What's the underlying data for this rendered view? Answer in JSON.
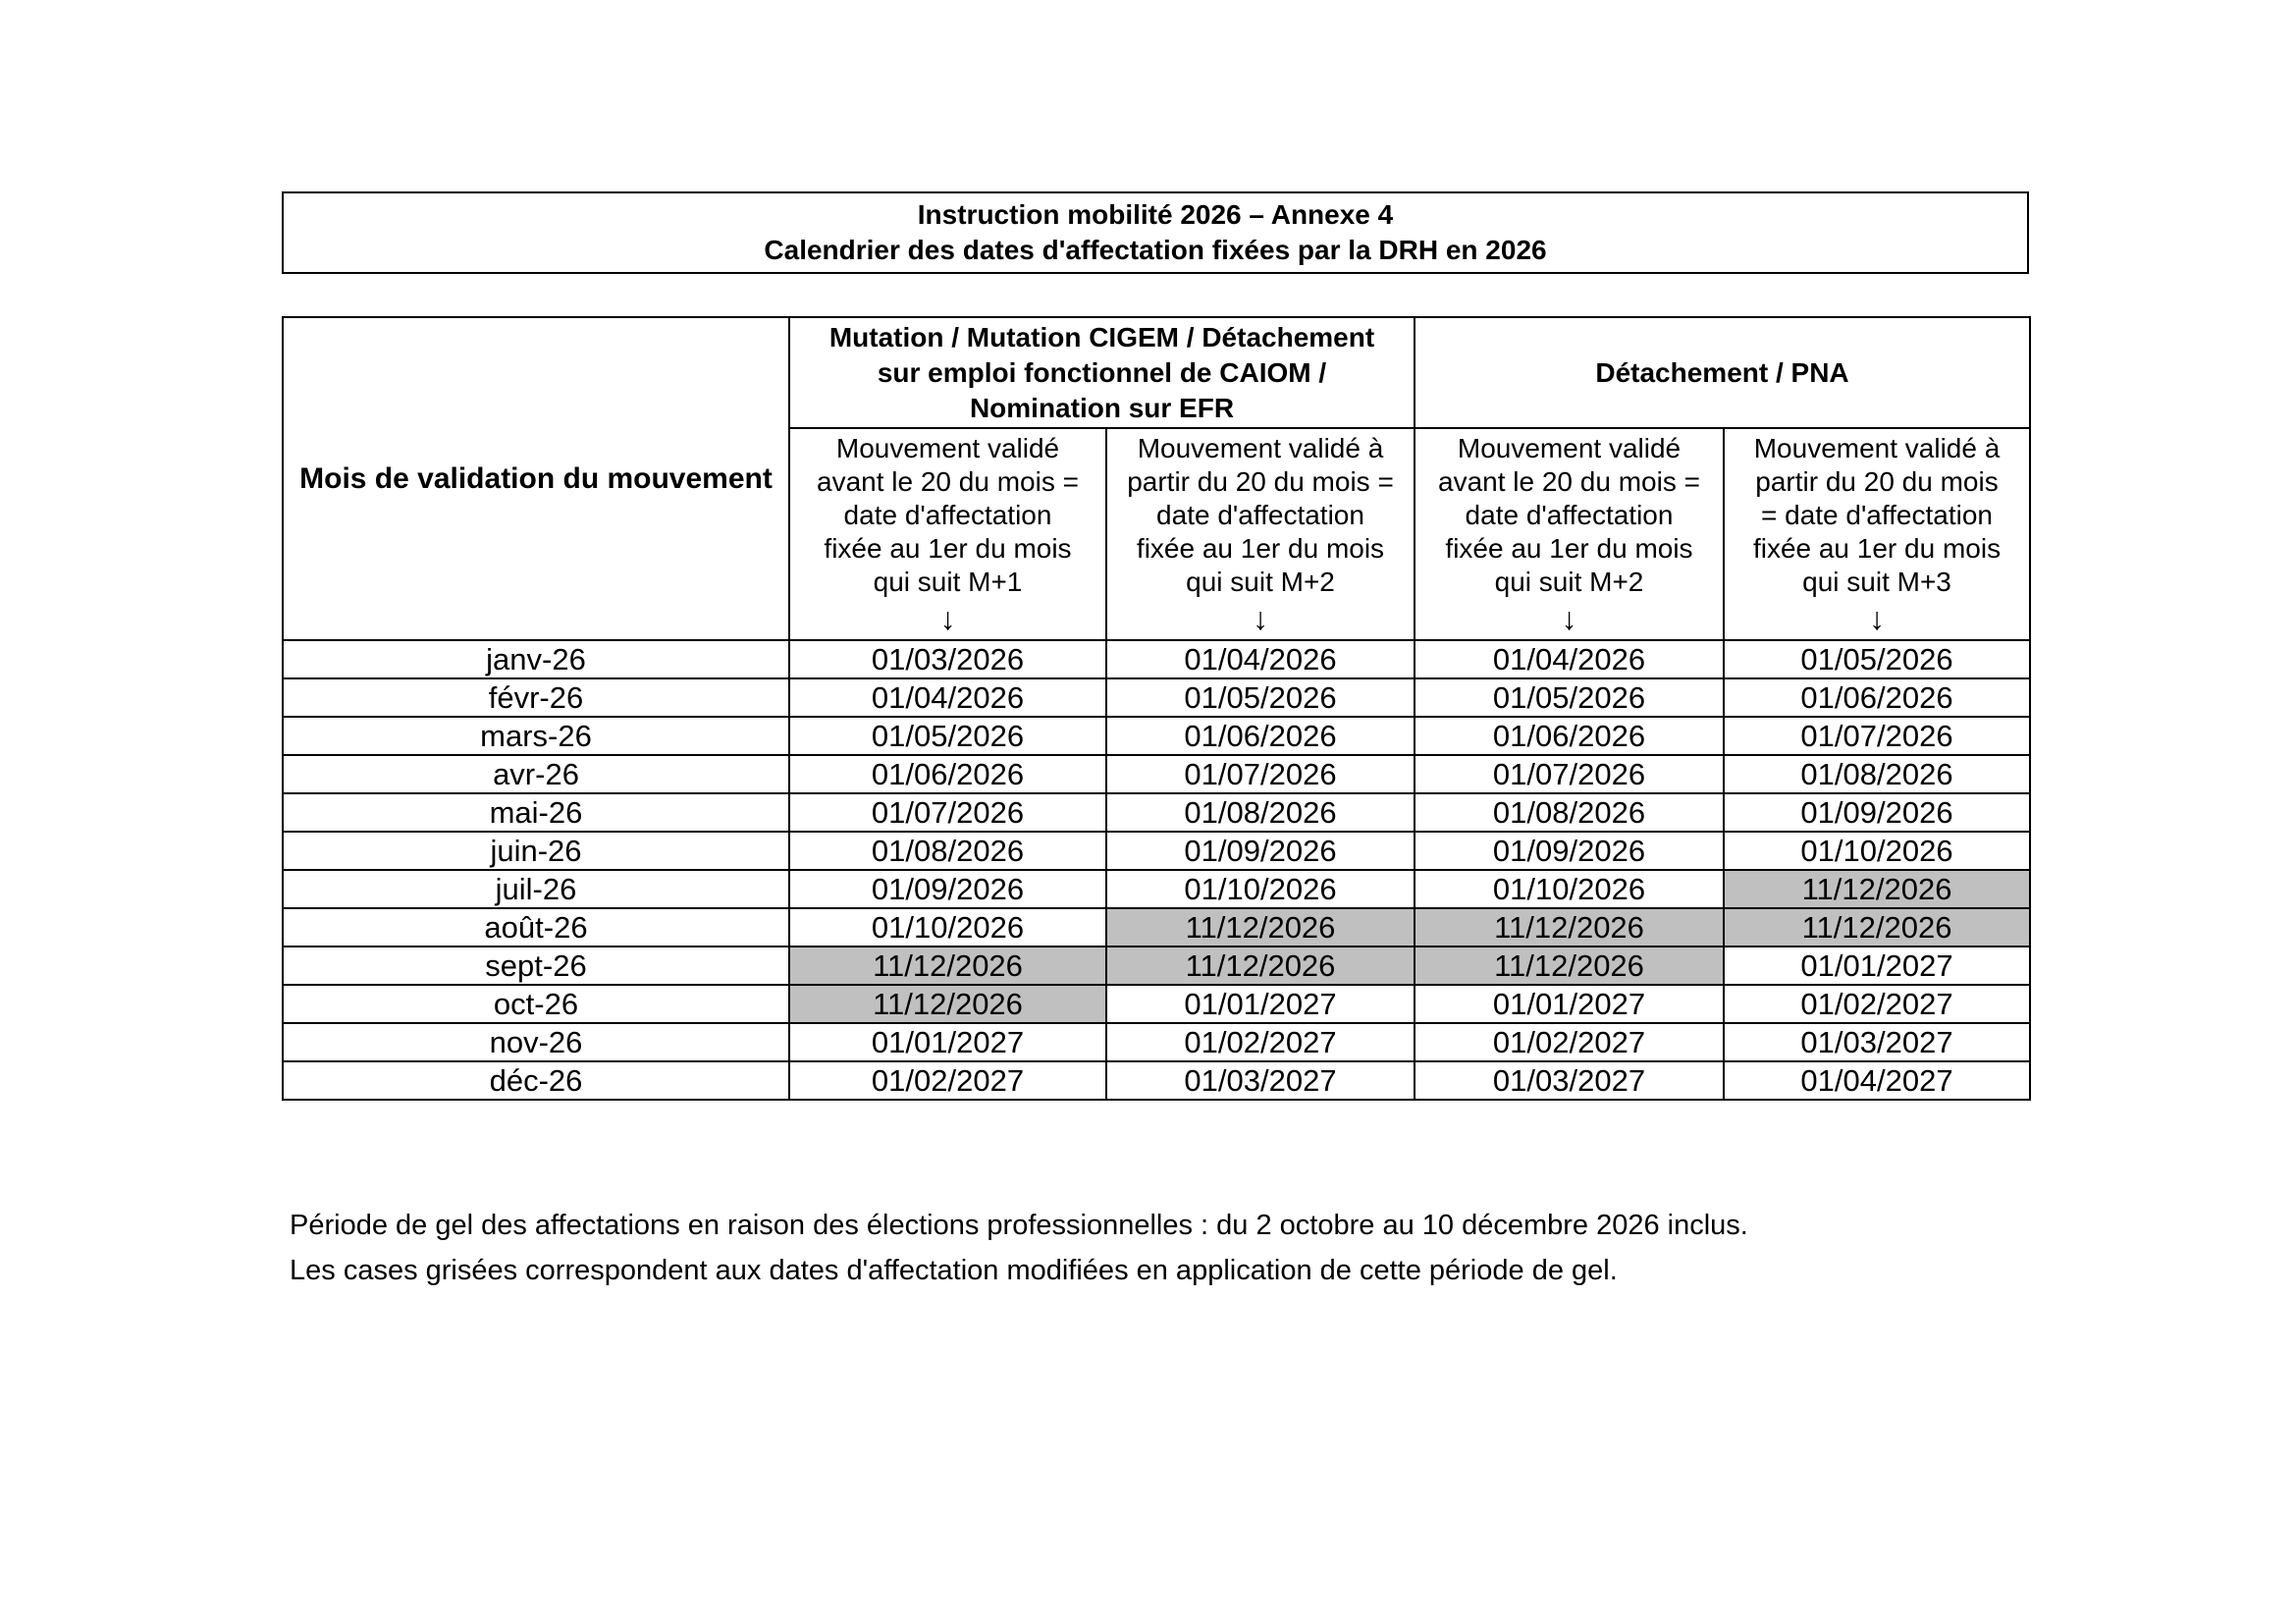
{
  "title": {
    "line1": "Instruction mobilité 2026 – Annexe 4",
    "line2": "Calendrier des dates d'affectation fixées par la DRH en 2026"
  },
  "table": {
    "corner_header": "Mois de validation du mouvement",
    "groups": [
      {
        "label": "Mutation / Mutation CIGEM / Détachement\nsur emploi fonctionnel de CAIOM /\nNomination sur EFR"
      },
      {
        "label": "Détachement / PNA"
      }
    ],
    "sub_headers": [
      {
        "text": "Mouvement validé\navant le 20 du mois =\ndate d'affectation\nfixée au 1er du mois\nqui suit M+1",
        "arrow": "↓"
      },
      {
        "text": "Mouvement validé à\npartir du 20 du mois =\ndate d'affectation\nfixée au 1er du mois\nqui suit M+2",
        "arrow": "↓"
      },
      {
        "text": "Mouvement validé\navant le 20 du mois =\ndate d'affectation\nfixée au 1er du mois\nqui suit M+2",
        "arrow": "↓"
      },
      {
        "text": "Mouvement validé à\npartir du 20 du mois\n= date d'affectation\nfixée au 1er du mois\nqui suit M+3",
        "arrow": "↓"
      }
    ],
    "rows": [
      {
        "month": "janv-26",
        "cells": [
          {
            "value": "01/03/2026",
            "gray": false
          },
          {
            "value": "01/04/2026",
            "gray": false
          },
          {
            "value": "01/04/2026",
            "gray": false
          },
          {
            "value": "01/05/2026",
            "gray": false
          }
        ]
      },
      {
        "month": "févr-26",
        "cells": [
          {
            "value": "01/04/2026",
            "gray": false
          },
          {
            "value": "01/05/2026",
            "gray": false
          },
          {
            "value": "01/05/2026",
            "gray": false
          },
          {
            "value": "01/06/2026",
            "gray": false
          }
        ]
      },
      {
        "month": "mars-26",
        "cells": [
          {
            "value": "01/05/2026",
            "gray": false
          },
          {
            "value": "01/06/2026",
            "gray": false
          },
          {
            "value": "01/06/2026",
            "gray": false
          },
          {
            "value": "01/07/2026",
            "gray": false
          }
        ]
      },
      {
        "month": "avr-26",
        "cells": [
          {
            "value": "01/06/2026",
            "gray": false
          },
          {
            "value": "01/07/2026",
            "gray": false
          },
          {
            "value": "01/07/2026",
            "gray": false
          },
          {
            "value": "01/08/2026",
            "gray": false
          }
        ]
      },
      {
        "month": "mai-26",
        "cells": [
          {
            "value": "01/07/2026",
            "gray": false
          },
          {
            "value": "01/08/2026",
            "gray": false
          },
          {
            "value": "01/08/2026",
            "gray": false
          },
          {
            "value": "01/09/2026",
            "gray": false
          }
        ]
      },
      {
        "month": "juin-26",
        "cells": [
          {
            "value": "01/08/2026",
            "gray": false
          },
          {
            "value": "01/09/2026",
            "gray": false
          },
          {
            "value": "01/09/2026",
            "gray": false
          },
          {
            "value": "01/10/2026",
            "gray": false
          }
        ]
      },
      {
        "month": "juil-26",
        "cells": [
          {
            "value": "01/09/2026",
            "gray": false
          },
          {
            "value": "01/10/2026",
            "gray": false
          },
          {
            "value": "01/10/2026",
            "gray": false
          },
          {
            "value": "11/12/2026",
            "gray": true
          }
        ]
      },
      {
        "month": "août-26",
        "cells": [
          {
            "value": "01/10/2026",
            "gray": false
          },
          {
            "value": "11/12/2026",
            "gray": true
          },
          {
            "value": "11/12/2026",
            "gray": true
          },
          {
            "value": "11/12/2026",
            "gray": true
          }
        ]
      },
      {
        "month": "sept-26",
        "cells": [
          {
            "value": "11/12/2026",
            "gray": true
          },
          {
            "value": "11/12/2026",
            "gray": true
          },
          {
            "value": "11/12/2026",
            "gray": true
          },
          {
            "value": "01/01/2027",
            "gray": false
          }
        ]
      },
      {
        "month": "oct-26",
        "cells": [
          {
            "value": "11/12/2026",
            "gray": true
          },
          {
            "value": "01/01/2027",
            "gray": false
          },
          {
            "value": "01/01/2027",
            "gray": false
          },
          {
            "value": "01/02/2027",
            "gray": false
          }
        ]
      },
      {
        "month": "nov-26",
        "cells": [
          {
            "value": "01/01/2027",
            "gray": false
          },
          {
            "value": "01/02/2027",
            "gray": false
          },
          {
            "value": "01/02/2027",
            "gray": false
          },
          {
            "value": "01/03/2027",
            "gray": false
          }
        ]
      },
      {
        "month": "déc-26",
        "cells": [
          {
            "value": "01/02/2027",
            "gray": false
          },
          {
            "value": "01/03/2027",
            "gray": false
          },
          {
            "value": "01/03/2027",
            "gray": false
          },
          {
            "value": "01/04/2027",
            "gray": false
          }
        ]
      }
    ]
  },
  "notes": [
    "Période de gel des affectations en raison des élections professionnelles : du 2 octobre au 10 décembre 2026 inclus.",
    "Les cases grisées correspondent aux dates d'affectation modifiées en application de cette période de gel."
  ],
  "colors": {
    "gray_cell": "#c0c0c0",
    "border": "#000000",
    "background": "#ffffff",
    "text": "#000000"
  }
}
